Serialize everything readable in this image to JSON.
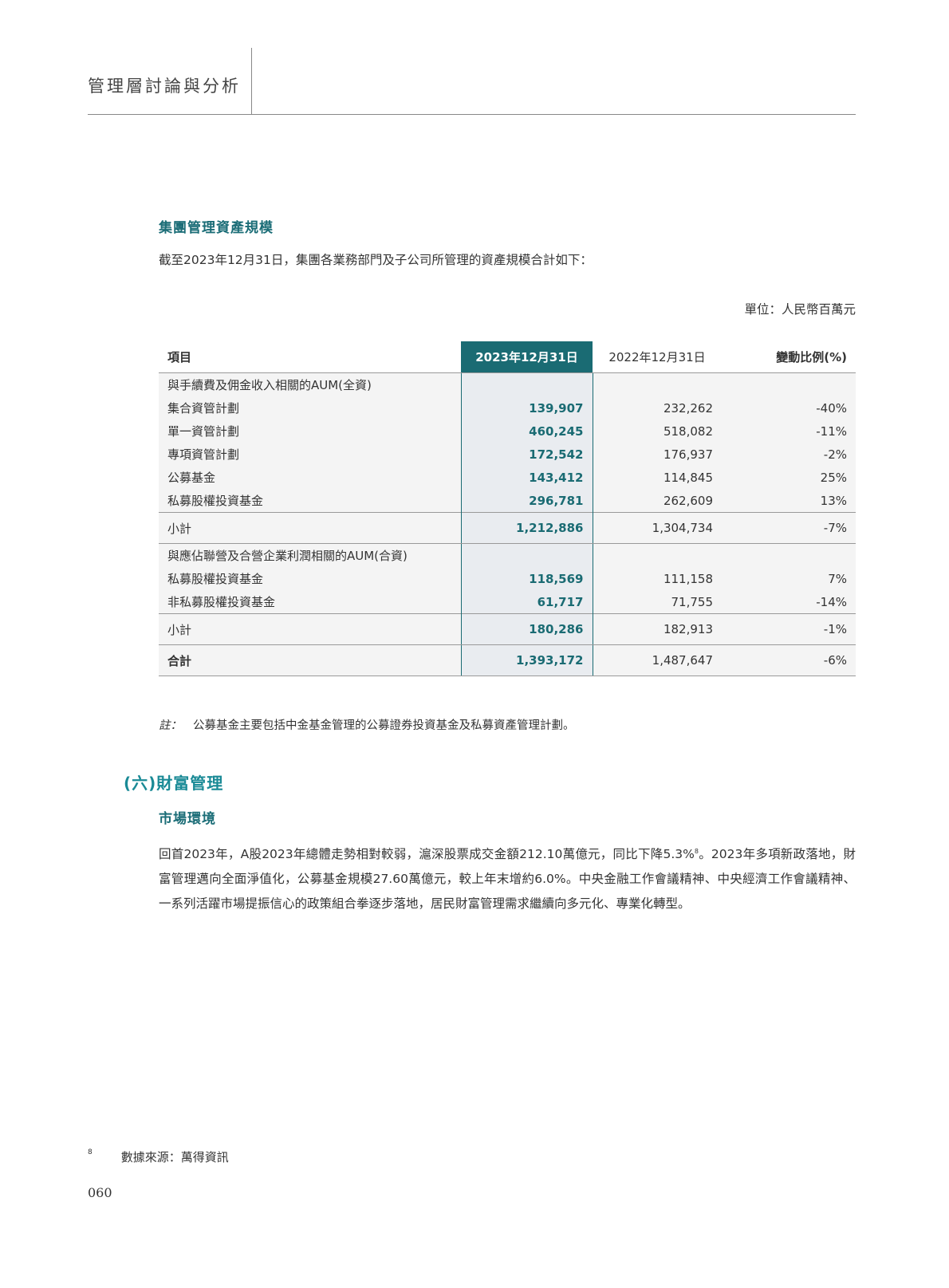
{
  "header": {
    "title": "管理層討論與分析"
  },
  "section": {
    "title": "集團管理資產規模",
    "intro": "截至2023年12月31日，集團各業務部門及子公司所管理的資產規模合計如下：",
    "unit": "單位：人民幣百萬元"
  },
  "table": {
    "headers": [
      "項目",
      "2023年12月31日",
      "2022年12月31日",
      "變動比例(%)"
    ],
    "rows": [
      {
        "type": "group",
        "cells": [
          "與手續費及佣金收入相關的AUM(全資)",
          "",
          "",
          ""
        ]
      },
      {
        "type": "item",
        "cells": [
          "集合資管計劃",
          "139,907",
          "232,262",
          "-40%"
        ]
      },
      {
        "type": "item",
        "cells": [
          "單一資管計劃",
          "460,245",
          "518,082",
          "-11%"
        ]
      },
      {
        "type": "item",
        "cells": [
          "專項資管計劃",
          "172,542",
          "176,937",
          "-2%"
        ]
      },
      {
        "type": "item",
        "cells": [
          "公募基金",
          "143,412",
          "114,845",
          "25%"
        ]
      },
      {
        "type": "item",
        "cells": [
          "私募股權投資基金",
          "296,781",
          "262,609",
          "13%"
        ]
      },
      {
        "type": "sub",
        "cells": [
          "小計",
          "1,212,886",
          "1,304,734",
          "-7%"
        ]
      },
      {
        "type": "group",
        "cells": [
          "與應佔聯營及合營企業利潤相關的AUM(合資)",
          "",
          "",
          ""
        ]
      },
      {
        "type": "item",
        "cells": [
          "私募股權投資基金",
          "118,569",
          "111,158",
          "7%"
        ]
      },
      {
        "type": "item",
        "cells": [
          "非私募股權投資基金",
          "61,717",
          "71,755",
          "-14%"
        ]
      },
      {
        "type": "sub",
        "cells": [
          "小計",
          "180,286",
          "182,913",
          "-1%"
        ]
      },
      {
        "type": "tot",
        "cells": [
          "合計",
          "1,393,172",
          "1,487,647",
          "-6%"
        ]
      }
    ]
  },
  "note": {
    "label": "註：",
    "text": "公募基金主要包括中金基金管理的公募證券投資基金及私募資產管理計劃。"
  },
  "wealth": {
    "title": "(六)財富管理",
    "subtitle": "市場環境",
    "p1": "回首2023年，A股2023年總體走勢相對較弱，滬深股票成交金額212.10萬億元，同比下降5.3%",
    "sup": "8",
    "p2": "。2023年多項新政落地，財富管理邁向全面淨值化，公募基金規模27.60萬億元，較上年末增約6.0%。中央金融工作會議精神、中央經濟工作會議精神、一系列活躍市場提振信心的政策組合拳逐步落地，居民財富管理需求繼續向多元化、專業化轉型。"
  },
  "footnote": {
    "mark": "8",
    "text": "數據來源：萬得資訊"
  },
  "page_number": "060"
}
